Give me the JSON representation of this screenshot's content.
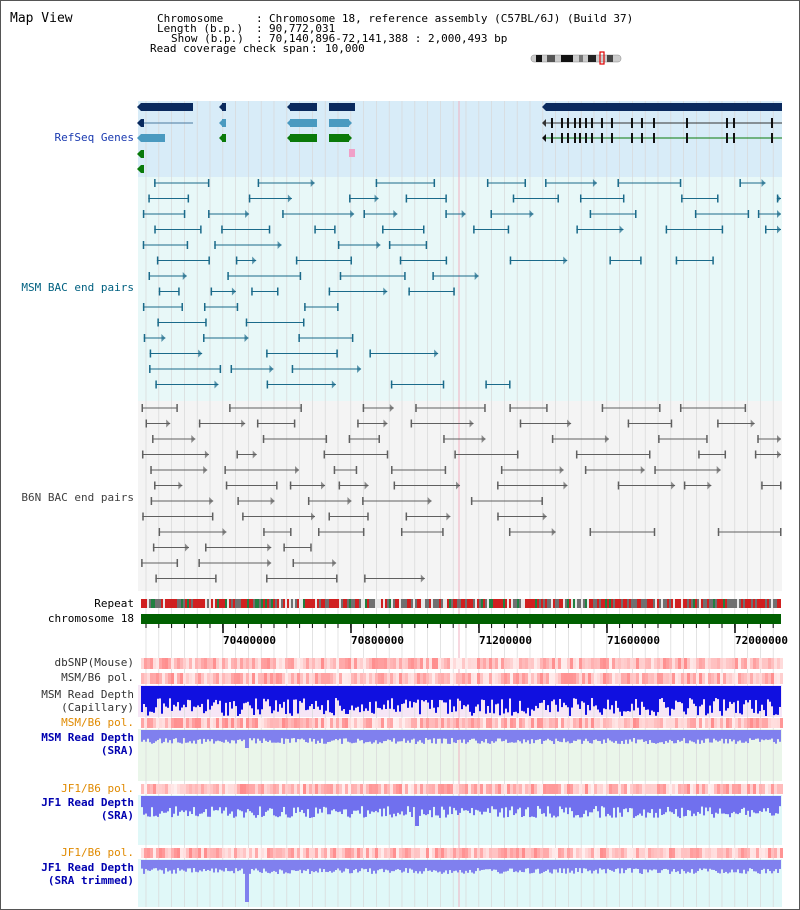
{
  "header": {
    "title": "Map View",
    "chromosome_label": "Chromosome",
    "chromosome_value": "Chromosome 18, reference assembly (C57BL/6J) (Build 37)",
    "length_label": "Length (b.p.)",
    "length_value": "90,772,031",
    "show_label": "Show (b.p.)",
    "show_value": "70,140,896-72,141,388 : 2,000,493 bp",
    "coverage_label": "Read coverage check span",
    "coverage_value": "10,000"
  },
  "tracks": {
    "refseq": "RefSeq Genes",
    "msm_bac": "MSM BAC end pairs",
    "b6n_bac": "B6N BAC end pairs",
    "repeat": "Repeat",
    "chromosome": "chromosome 18",
    "dbsnp": "dbSNP(Mouse)",
    "msm_b6_pol_1": "MSM/B6 pol.",
    "msm_read_depth_cap_1": "MSM Read Depth",
    "msm_read_depth_cap_2": "(Capillary)",
    "msm_b6_pol_2": "MSM/B6 pol.",
    "msm_read_depth_sra_1": "MSM Read Depth",
    "msm_read_depth_sra_2": "(SRA)",
    "jf1_b6_pol_1": "JF1/B6 pol.",
    "jf1_read_depth_sra_1": "JF1 Read Depth",
    "jf1_read_depth_sra_2": "(SRA)",
    "jf1_b6_pol_2": "JF1/B6 pol.",
    "jf1_read_depth_trim_1": "JF1 Read Depth",
    "jf1_read_depth_trim_2": "(SRA trimmed)"
  },
  "axis": {
    "ticks": [
      "70400000",
      "70800000",
      "71200000",
      "71600000",
      "72000000"
    ]
  },
  "colors": {
    "gene_dark": "#0a2a5e",
    "gene_mid": "#4a9ac0",
    "gene_green": "#0a7a0a",
    "refseq_bg": "#d8ecf8",
    "msm_bg": "#e6f8f8",
    "b6n_bg": "#eeeeee",
    "msm_label": "#006080",
    "b6n_label": "#404040",
    "orange_label": "#e08a00",
    "blue_label": "#0000b0",
    "chromosome_bar": "#006000",
    "depth_dark": "#0000e0",
    "depth_light": "#7878ee"
  }
}
